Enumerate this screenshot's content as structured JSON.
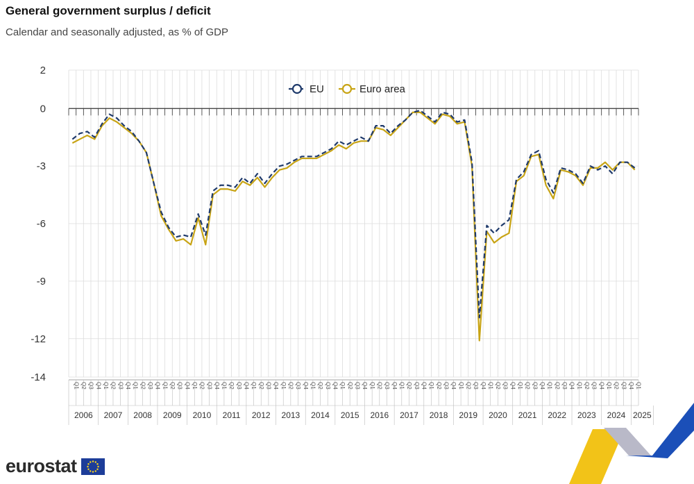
{
  "header": {
    "title": "General government surplus / deficit",
    "subtitle": "Calendar and seasonally adjusted, as % of GDP"
  },
  "brand": {
    "name": "eurostat",
    "logo_icon": "eu-flag-icon",
    "ribbon_icon": "eu-ribbon-icon"
  },
  "colors": {
    "eu": "#1f3a6b",
    "euro_area": "#c8a415",
    "grid": "#dcdcdc",
    "axis": "#333333",
    "ribbon_yellow": "#f2c318",
    "ribbon_blue": "#1b4fb8",
    "ribbon_grey": "#b9b9c8",
    "flag_blue": "#1d3d99",
    "flag_star": "#ffd617"
  },
  "chart_data": {
    "type": "line",
    "xlabel": "",
    "ylabel": "",
    "ylim": [
      -14,
      2
    ],
    "yticks": [
      2,
      0,
      -3,
      -6,
      -9,
      -12,
      -14
    ],
    "ytick_labels": [
      "2",
      "0",
      "-3",
      "-6",
      "-9",
      "-12",
      "-14"
    ],
    "legend": {
      "placement": "top-center",
      "entries": [
        "EU",
        "Euro area"
      ]
    },
    "quarter_labels": [
      "Q1",
      "Q2",
      "Q3",
      "Q4"
    ],
    "years": [
      "2006",
      "2007",
      "2008",
      "2009",
      "2010",
      "2011",
      "2012",
      "2013",
      "2014",
      "2015",
      "2016",
      "2017",
      "2018",
      "2019",
      "2020",
      "2021",
      "2022",
      "2023",
      "2024",
      "2025"
    ],
    "last_year_quarters": 3,
    "grid": true,
    "series": [
      {
        "name": "EU",
        "style": "dashed",
        "values": [
          -1.6,
          -1.3,
          -1.2,
          -1.5,
          -0.8,
          -0.3,
          -0.5,
          -0.9,
          -1.2,
          -1.7,
          -2.3,
          -3.9,
          -5.4,
          -6.2,
          -6.7,
          -6.6,
          -6.7,
          -5.5,
          -6.6,
          -4.3,
          -4.0,
          -4.0,
          -4.1,
          -3.6,
          -3.9,
          -3.4,
          -3.9,
          -3.4,
          -3.0,
          -2.9,
          -2.7,
          -2.5,
          -2.5,
          -2.5,
          -2.3,
          -2.1,
          -1.7,
          -1.9,
          -1.7,
          -1.5,
          -1.7,
          -0.9,
          -0.9,
          -1.3,
          -0.9,
          -0.6,
          -0.2,
          -0.1,
          -0.4,
          -0.7,
          -0.2,
          -0.3,
          -0.7,
          -0.6,
          -2.8,
          -10.9,
          -6.1,
          -6.5,
          -6.1,
          -5.8,
          -3.7,
          -3.3,
          -2.4,
          -2.2,
          -3.7,
          -4.4,
          -3.1,
          -3.2,
          -3.4,
          -3.9,
          -3.0,
          -3.2,
          -3.0,
          -3.4,
          -2.8,
          -2.8,
          -3.1
        ]
      },
      {
        "name": "Euro area",
        "style": "solid",
        "values": [
          -1.8,
          -1.6,
          -1.4,
          -1.6,
          -0.9,
          -0.5,
          -0.7,
          -1.0,
          -1.3,
          -1.7,
          -2.3,
          -3.9,
          -5.6,
          -6.3,
          -6.9,
          -6.8,
          -7.1,
          -5.7,
          -7.1,
          -4.5,
          -4.2,
          -4.2,
          -4.3,
          -3.8,
          -4.0,
          -3.6,
          -4.1,
          -3.6,
          -3.2,
          -3.1,
          -2.8,
          -2.6,
          -2.6,
          -2.6,
          -2.4,
          -2.2,
          -1.9,
          -2.1,
          -1.8,
          -1.7,
          -1.7,
          -1.0,
          -1.1,
          -1.4,
          -1.0,
          -0.6,
          -0.2,
          -0.2,
          -0.5,
          -0.8,
          -0.3,
          -0.4,
          -0.8,
          -0.7,
          -3.0,
          -12.1,
          -6.4,
          -7.0,
          -6.7,
          -6.5,
          -3.8,
          -3.5,
          -2.5,
          -2.4,
          -4.0,
          -4.7,
          -3.2,
          -3.3,
          -3.5,
          -4.0,
          -3.1,
          -3.1,
          -2.8,
          -3.2,
          -2.8,
          -2.8,
          -3.2
        ]
      }
    ]
  }
}
